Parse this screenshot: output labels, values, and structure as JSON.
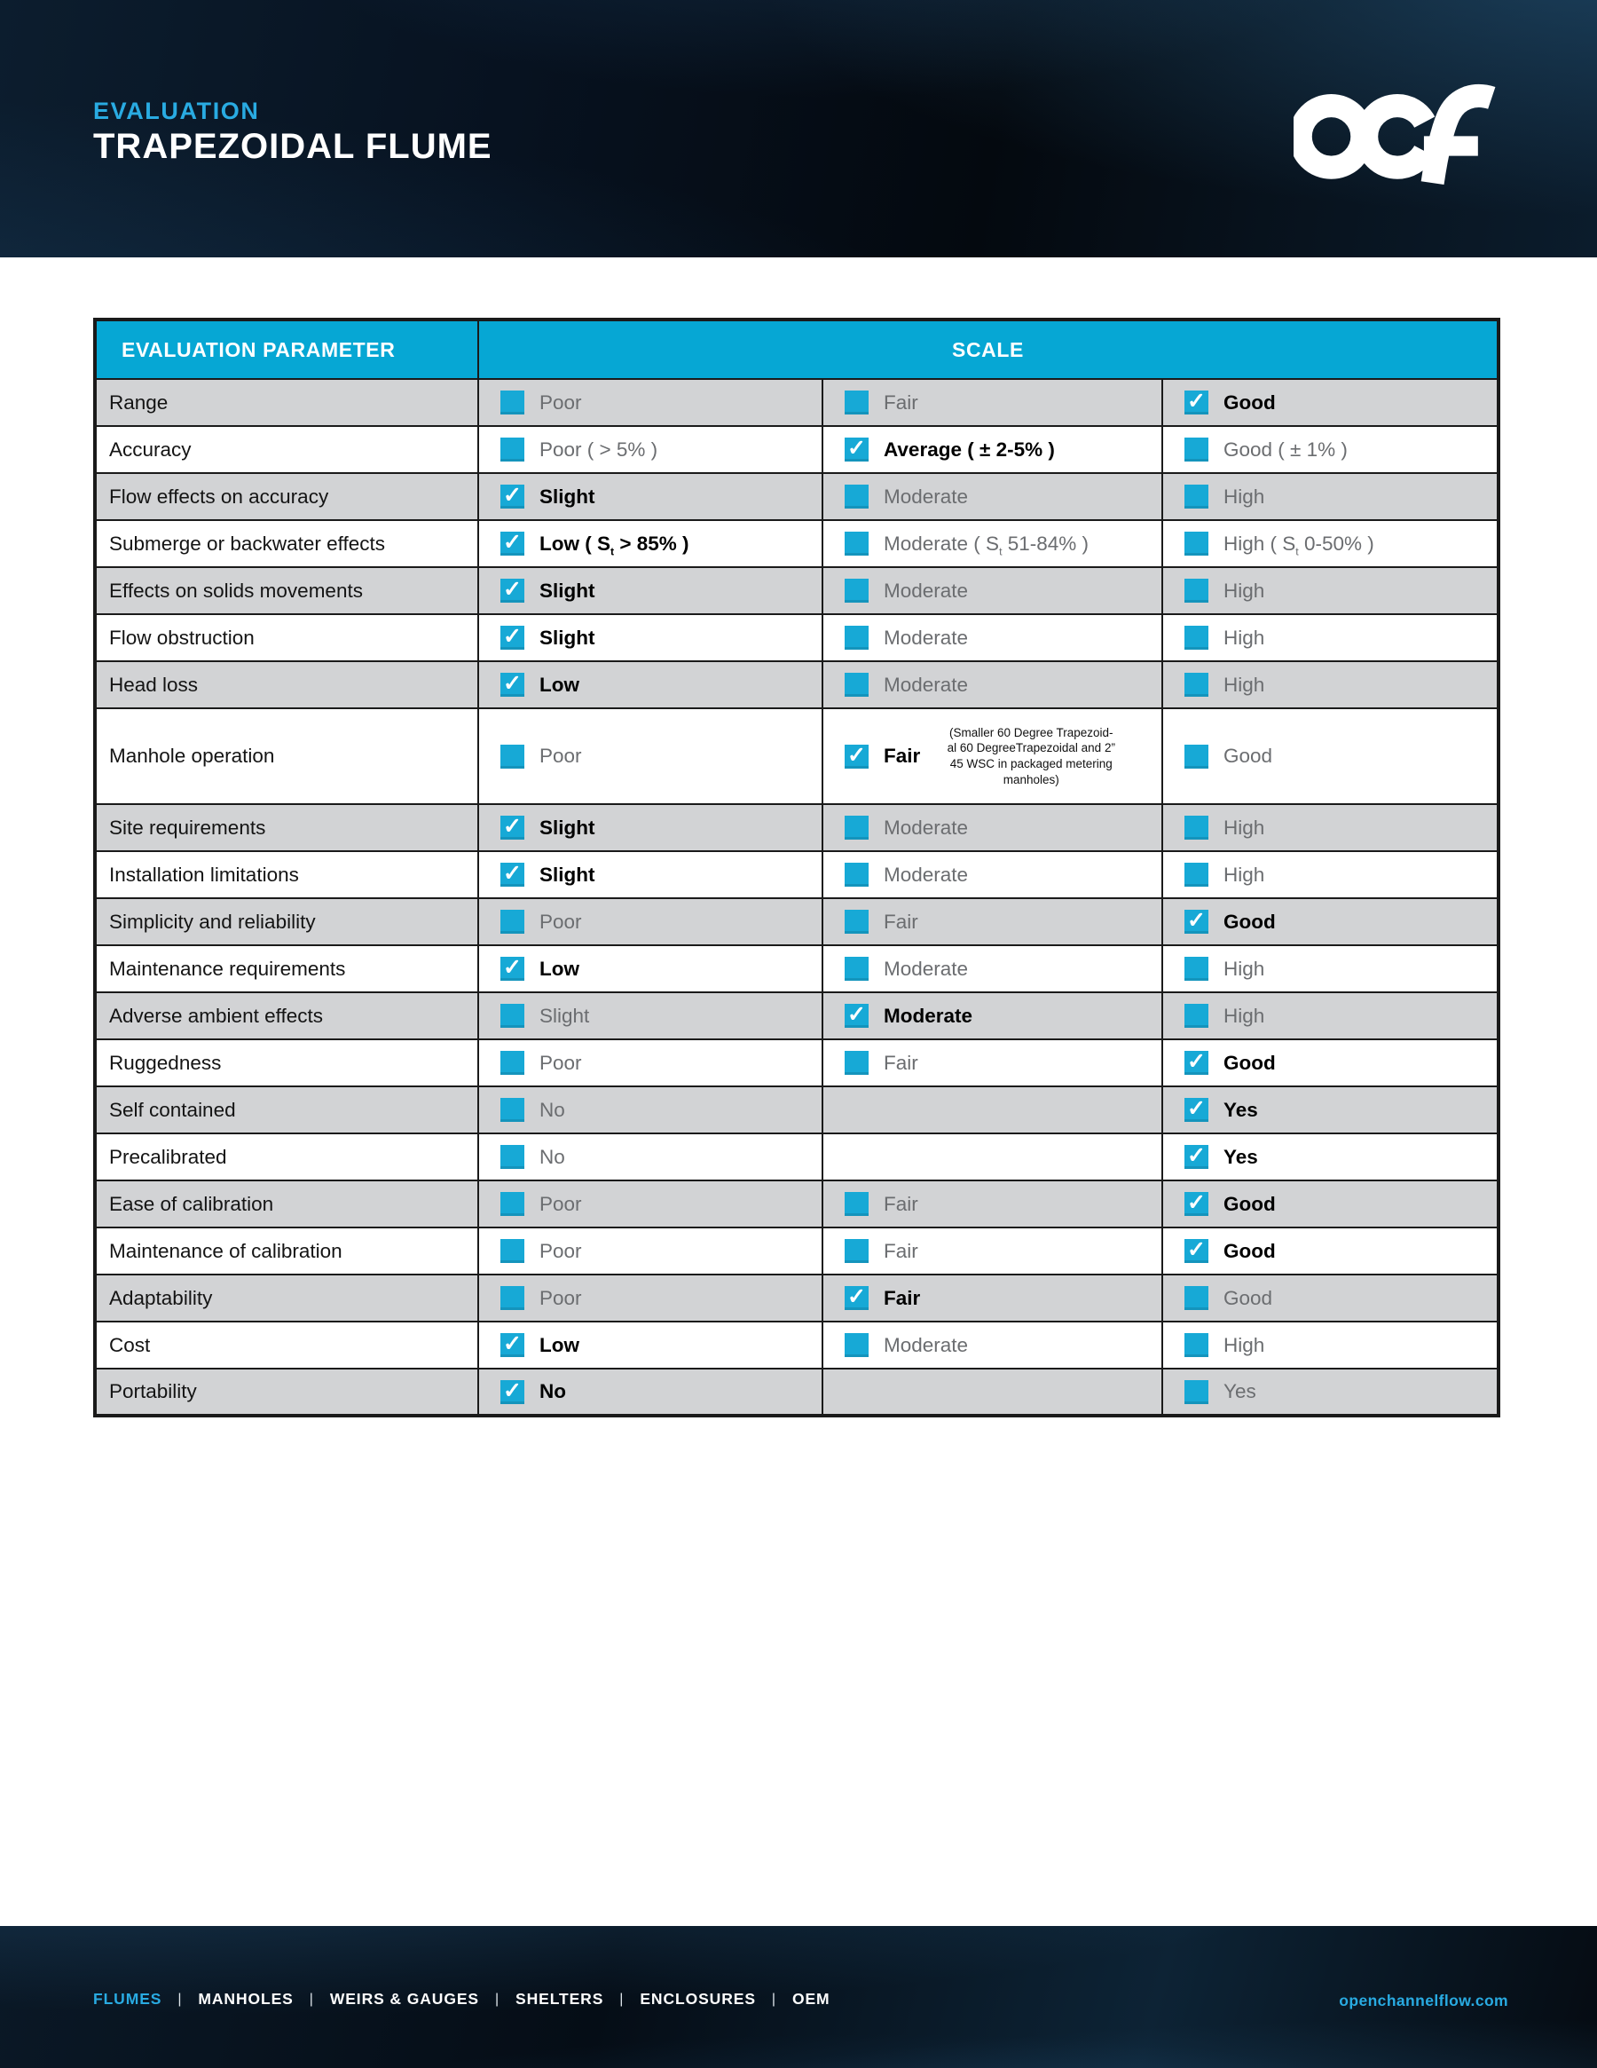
{
  "header": {
    "eyebrow": "EVALUATION",
    "title": "TRAPEZOIDAL FLUME",
    "logo_text": "ocf"
  },
  "table": {
    "param_header": "EVALUATION PARAMETER",
    "scale_header": "SCALE",
    "check_glyph": "✓",
    "rows": [
      {
        "param": "Range",
        "options": [
          {
            "label": "Poor",
            "checked": false
          },
          {
            "label": "Fair",
            "checked": false
          },
          {
            "label": "Good",
            "checked": true
          }
        ]
      },
      {
        "param": "Accuracy",
        "options": [
          {
            "label": "Poor ( > 5% )",
            "checked": false
          },
          {
            "label": "Average ( ± 2-5% )",
            "checked": true
          },
          {
            "label": "Good ( ± 1% )",
            "checked": false
          }
        ]
      },
      {
        "param": "Flow effects on accuracy",
        "options": [
          {
            "label": "Slight",
            "checked": true
          },
          {
            "label": "Moderate",
            "checked": false
          },
          {
            "label": "High",
            "checked": false
          }
        ]
      },
      {
        "param": "Submerge or backwater effects",
        "options": [
          {
            "label": "Low ( S_{t} > 85% )",
            "checked": true
          },
          {
            "label": "Moderate ( S_{t} 51-84% )",
            "checked": false
          },
          {
            "label": "High ( S_{t} 0-50% )",
            "checked": false
          }
        ]
      },
      {
        "param": "Effects on solids movements",
        "options": [
          {
            "label": "Slight",
            "checked": true
          },
          {
            "label": "Moderate",
            "checked": false
          },
          {
            "label": "High",
            "checked": false
          }
        ]
      },
      {
        "param": "Flow obstruction",
        "options": [
          {
            "label": "Slight",
            "checked": true
          },
          {
            "label": "Moderate",
            "checked": false
          },
          {
            "label": "High",
            "checked": false
          }
        ]
      },
      {
        "param": "Head loss",
        "options": [
          {
            "label": "Low",
            "checked": true
          },
          {
            "label": "Moderate",
            "checked": false
          },
          {
            "label": "High",
            "checked": false
          }
        ]
      },
      {
        "param": "Manhole operation",
        "tall": true,
        "options": [
          {
            "label": "Poor",
            "checked": false
          },
          {
            "label": "Fair",
            "checked": true,
            "note_lines": [
              "(Smaller 60 Degree Trapezoid-",
              "al 60 DegreeTrapezoidal and 2”",
              "45 WSC in packaged metering",
              "manholes)"
            ]
          },
          {
            "label": "Good",
            "checked": false
          }
        ]
      },
      {
        "param": "Site requirements",
        "options": [
          {
            "label": "Slight",
            "checked": true
          },
          {
            "label": "Moderate",
            "checked": false
          },
          {
            "label": "High",
            "checked": false
          }
        ]
      },
      {
        "param": "Installation limitations",
        "options": [
          {
            "label": "Slight",
            "checked": true
          },
          {
            "label": "Moderate",
            "checked": false
          },
          {
            "label": "High",
            "checked": false
          }
        ]
      },
      {
        "param": "Simplicity and reliability",
        "options": [
          {
            "label": "Poor",
            "checked": false
          },
          {
            "label": "Fair",
            "checked": false
          },
          {
            "label": "Good",
            "checked": true
          }
        ]
      },
      {
        "param": "Maintenance requirements",
        "options": [
          {
            "label": "Low",
            "checked": true
          },
          {
            "label": "Moderate",
            "checked": false
          },
          {
            "label": "High",
            "checked": false
          }
        ]
      },
      {
        "param": "Adverse ambient effects",
        "options": [
          {
            "label": "Slight",
            "checked": false
          },
          {
            "label": "Moderate",
            "checked": true
          },
          {
            "label": "High",
            "checked": false
          }
        ]
      },
      {
        "param": "Ruggedness",
        "options": [
          {
            "label": "Poor",
            "checked": false
          },
          {
            "label": "Fair",
            "checked": false
          },
          {
            "label": "Good",
            "checked": true
          }
        ]
      },
      {
        "param": "Self contained",
        "options": [
          {
            "label": "No",
            "checked": false
          },
          {
            "label": "",
            "checked": false
          },
          {
            "label": "Yes",
            "checked": true
          }
        ]
      },
      {
        "param": "Precalibrated",
        "options": [
          {
            "label": "No",
            "checked": false
          },
          {
            "label": "",
            "checked": false
          },
          {
            "label": "Yes",
            "checked": true
          }
        ]
      },
      {
        "param": "Ease of calibration",
        "options": [
          {
            "label": "Poor",
            "checked": false
          },
          {
            "label": "Fair",
            "checked": false
          },
          {
            "label": "Good",
            "checked": true
          }
        ]
      },
      {
        "param": "Maintenance of calibration",
        "options": [
          {
            "label": "Poor",
            "checked": false
          },
          {
            "label": "Fair",
            "checked": false
          },
          {
            "label": "Good",
            "checked": true
          }
        ]
      },
      {
        "param": "Adaptability",
        "options": [
          {
            "label": "Poor",
            "checked": false
          },
          {
            "label": "Fair",
            "checked": true
          },
          {
            "label": "Good",
            "checked": false
          }
        ]
      },
      {
        "param": "Cost",
        "options": [
          {
            "label": "Low",
            "checked": true
          },
          {
            "label": "Moderate",
            "checked": false
          },
          {
            "label": "High",
            "checked": false
          }
        ]
      },
      {
        "param": "Portability",
        "options": [
          {
            "label": "No",
            "checked": true
          },
          {
            "label": "",
            "checked": false
          },
          {
            "label": "Yes",
            "checked": false
          }
        ]
      }
    ]
  },
  "footer": {
    "nav": [
      "FLUMES",
      "MANHOLES",
      "WEIRS & GAUGES",
      "SHELTERS",
      "ENCLOSURES",
      "OEM"
    ],
    "separator": "|",
    "website": "openchannelflow.com"
  },
  "colors": {
    "accent_cyan": "#29ABE2",
    "table_header_cyan": "#06A7D4",
    "checkbox_cyan": "#17A9D6",
    "row_gray": "#D2D3D5",
    "band_navy": "#071220"
  }
}
